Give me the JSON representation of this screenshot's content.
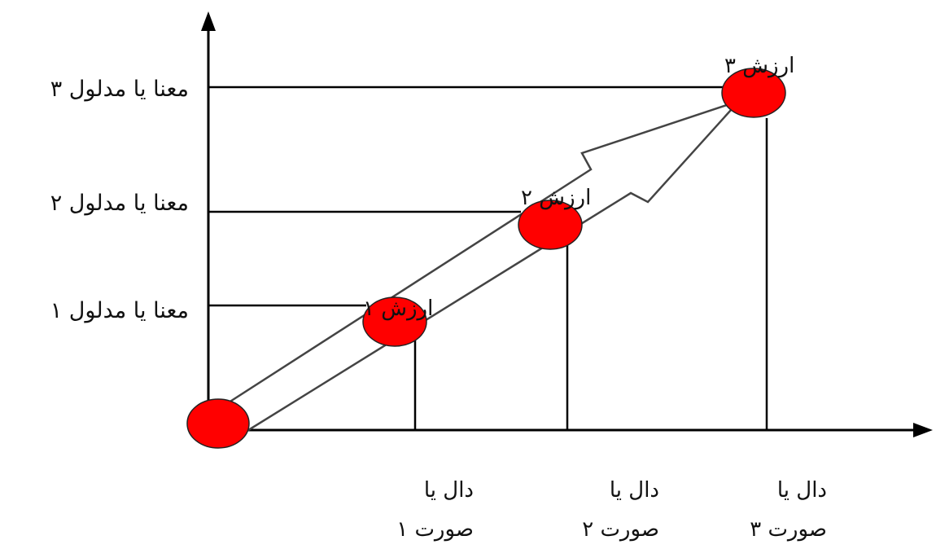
{
  "diagram": {
    "y_labels": [
      "معنا یا مدلول ۳",
      "معنا یا مدلول ۲",
      "معنا یا مدلول ۱"
    ],
    "x_labels": [
      {
        "line1": "دال یا",
        "line2": "صورت ۱"
      },
      {
        "line1": "دال یا",
        "line2": "صورت ۲"
      },
      {
        "line1": "دال یا",
        "line2": "صورت ۳"
      }
    ],
    "node_labels": [
      "ارزش ۳",
      "ارزش ۲",
      "ارزش ۱"
    ],
    "colors": {
      "node_fill": "#ff0000",
      "line": "#000000",
      "arrow": "#555555"
    }
  }
}
